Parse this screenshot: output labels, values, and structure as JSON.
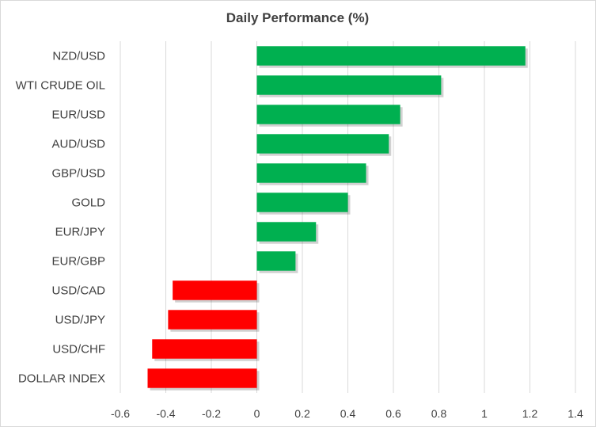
{
  "chart_data": {
    "type": "bar",
    "orientation": "horizontal",
    "title": "Daily Performance  (%)",
    "categories": [
      "NZD/USD",
      "WTI CRUDE OIL",
      "EUR/USD",
      "AUD/USD",
      "GBP/USD",
      "GOLD",
      "EUR/JPY",
      "EUR/GBP",
      "USD/CAD",
      "USD/JPY",
      "USD/CHF",
      "DOLLAR INDEX"
    ],
    "values": [
      1.18,
      0.81,
      0.63,
      0.58,
      0.48,
      0.4,
      0.26,
      0.17,
      -0.37,
      -0.39,
      -0.46,
      -0.48
    ],
    "xlim": [
      -0.6,
      1.4
    ],
    "xticks": [
      "-0.6",
      "-0.4",
      "-0.2",
      "0",
      "0.2",
      "0.4",
      "0.6",
      "0.8",
      "1",
      "1.2",
      "1.4"
    ],
    "xlabel": "",
    "ylabel": "",
    "grid": "vertical",
    "colors": {
      "positive": "#00b050",
      "negative": "#ff0000",
      "grid": "#d9d9d9",
      "text": "#404040"
    }
  }
}
